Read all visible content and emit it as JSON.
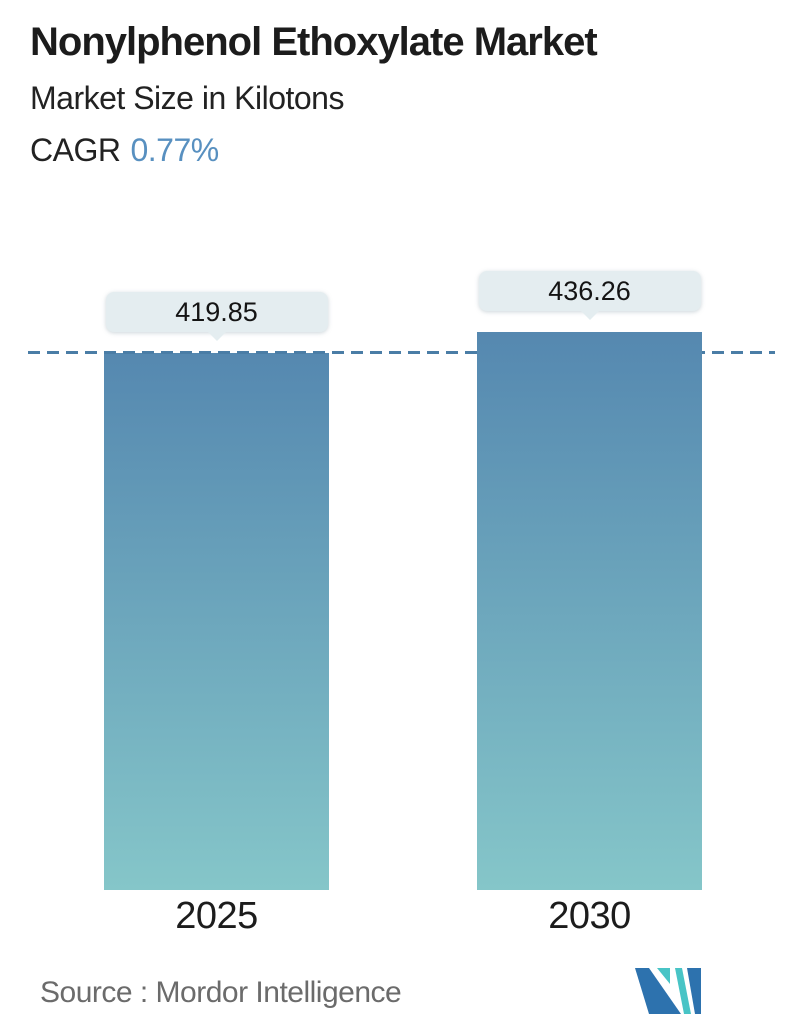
{
  "header": {
    "title": "Nonylphenol Ethoxylate Market",
    "subtitle": "Market Size in Kilotons",
    "cagr_label": "CAGR",
    "cagr_value": "0.77%"
  },
  "chart_data": {
    "type": "bar",
    "title": "Nonylphenol Ethoxylate Market",
    "ylabel": "Market Size in Kilotons",
    "xlabel": "",
    "cagr_percent": 0.77,
    "categories": [
      "2025",
      "2030"
    ],
    "values": [
      419.85,
      436.26
    ],
    "value_labels": [
      "419.85",
      "436.26"
    ],
    "ylim": [
      0,
      450
    ],
    "grid": "off",
    "legend": "none",
    "reference_line": {
      "style": "dashed",
      "at_value": 419.85,
      "orientation": "horizontal"
    }
  },
  "footer": {
    "source_label": "Source :  Mordor Intelligence"
  },
  "colors": {
    "bar_top": "#5588b0",
    "bar_bottom": "#85c6c9",
    "dash_line": "#4a7da6",
    "cagr_accent": "#5890c0",
    "tooltip_bg": "#e4edf0",
    "text_dark": "#1c1c1c",
    "source_gray": "#6b6b6b",
    "logo_blue": "#2d72ae",
    "logo_teal": "#48c4c6"
  }
}
